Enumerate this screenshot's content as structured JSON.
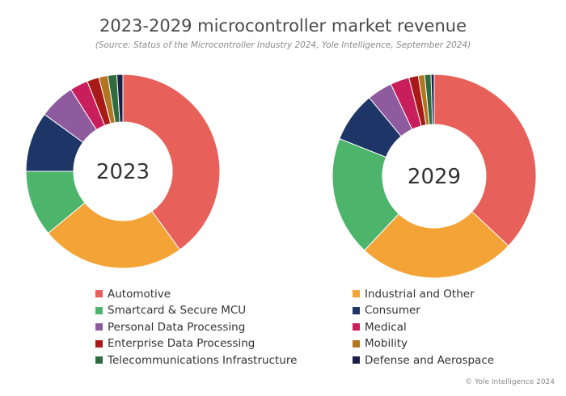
{
  "title": "2023-2029 microcontroller market revenue",
  "subtitle": "(Source: Status of the Microcontroller Industry 2024, Yole Intelligence, September 2024)",
  "copyright": "© Yole Intelligence 2024",
  "chart_data": [
    {
      "type": "pie",
      "center_label": "2023",
      "categories": [
        "Automotive",
        "Industrial and Other",
        "Smartcard & Secure MCU",
        "Consumer",
        "Personal Data Processing",
        "Medical",
        "Enterprise Data Processing",
        "Mobility",
        "Telecommunications Infrastructure",
        "Defense and Aerospace"
      ],
      "values": [
        40,
        24,
        11,
        10,
        6,
        3,
        2,
        1.5,
        1.5,
        1
      ],
      "colors": [
        "#e8605a",
        "#f4a336",
        "#4cb56b",
        "#1e3567",
        "#8e5b9f",
        "#c81e5b",
        "#a81a18",
        "#b1761f",
        "#2f6b3c",
        "#1a2148"
      ]
    },
    {
      "type": "pie",
      "center_label": "2029",
      "categories": [
        "Automotive",
        "Industrial and Other",
        "Smartcard & Secure MCU",
        "Consumer",
        "Personal Data Processing",
        "Medical",
        "Enterprise Data Processing",
        "Mobility",
        "Telecommunications Infrastructure",
        "Defense and Aerospace"
      ],
      "values": [
        37,
        25,
        19,
        8,
        4,
        3,
        1.5,
        1,
        1,
        0.5
      ],
      "colors": [
        "#e8605a",
        "#f4a336",
        "#4cb56b",
        "#1e3567",
        "#8e5b9f",
        "#c81e5b",
        "#a81a18",
        "#b1761f",
        "#2f6b3c",
        "#1a2148"
      ]
    }
  ],
  "legend": [
    {
      "label": "Automotive",
      "color": "#e8605a"
    },
    {
      "label": "Industrial and Other",
      "color": "#f4a336"
    },
    {
      "label": "Smartcard & Secure MCU",
      "color": "#4cb56b"
    },
    {
      "label": "Consumer",
      "color": "#1e3567"
    },
    {
      "label": "Personal Data Processing",
      "color": "#8e5b9f"
    },
    {
      "label": "Medical",
      "color": "#c81e5b"
    },
    {
      "label": "Enterprise Data Processing",
      "color": "#a81a18"
    },
    {
      "label": "Mobility",
      "color": "#b1761f"
    },
    {
      "label": "Telecommunications Infrastructure",
      "color": "#2f6b3c"
    },
    {
      "label": "Defense and Aerospace",
      "color": "#1a2148"
    }
  ]
}
